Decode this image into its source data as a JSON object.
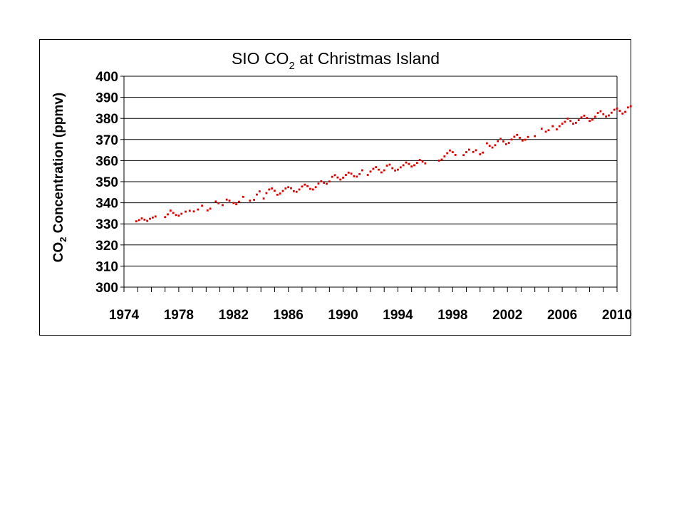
{
  "chart_data": {
    "type": "scatter",
    "title": "SIO CO",
    "title_subscript": "2",
    "title_suffix": " at Christmas Island",
    "ylabel": "CO",
    "ylabel_subscript": "2",
    "ylabel_suffix": " Concentration (ppmv)",
    "xlabel": "",
    "xlim": [
      1974,
      2010
    ],
    "ylim": [
      300,
      400
    ],
    "x_ticks": [
      "1974",
      "1978",
      "1982",
      "1986",
      "1990",
      "1994",
      "1998",
      "2002",
      "2006",
      "2010"
    ],
    "y_ticks": [
      "300",
      "310",
      "320",
      "330",
      "340",
      "350",
      "360",
      "370",
      "380",
      "390",
      "400"
    ],
    "grid": "horizontal",
    "legend": "none",
    "marker_color": "#e00000",
    "series": [
      {
        "points": [
          [
            1974.9,
            331.2
          ],
          [
            1975.1,
            331.8
          ],
          [
            1975.3,
            332.6
          ],
          [
            1975.5,
            332.0
          ],
          [
            1975.7,
            331.4
          ],
          [
            1975.9,
            332.4
          ],
          [
            1976.1,
            333.0
          ],
          [
            1976.3,
            333.5
          ],
          [
            1977.0,
            333.2
          ],
          [
            1977.2,
            334.5
          ],
          [
            1977.4,
            336.3
          ],
          [
            1977.6,
            335.2
          ],
          [
            1977.8,
            334.2
          ],
          [
            1978.0,
            333.9
          ],
          [
            1978.2,
            334.8
          ],
          [
            1978.5,
            335.8
          ],
          [
            1978.8,
            336.2
          ],
          [
            1979.1,
            335.9
          ],
          [
            1979.4,
            336.8
          ],
          [
            1979.7,
            338.6
          ],
          [
            1980.1,
            336.4
          ],
          [
            1980.3,
            337.2
          ],
          [
            1980.7,
            340.6
          ],
          [
            1980.9,
            339.8
          ],
          [
            1981.2,
            338.9
          ],
          [
            1981.5,
            341.5
          ],
          [
            1981.7,
            341.0
          ],
          [
            1982.0,
            339.9
          ],
          [
            1982.2,
            339.3
          ],
          [
            1982.4,
            340.5
          ],
          [
            1982.7,
            342.8
          ],
          [
            1983.2,
            341.0
          ],
          [
            1983.5,
            341.4
          ],
          [
            1983.7,
            343.9
          ],
          [
            1983.9,
            345.4
          ],
          [
            1984.2,
            342.0
          ],
          [
            1984.4,
            344.6
          ],
          [
            1984.6,
            346.3
          ],
          [
            1984.8,
            346.8
          ],
          [
            1985.0,
            345.7
          ],
          [
            1985.2,
            343.8
          ],
          [
            1985.4,
            344.4
          ],
          [
            1985.6,
            345.6
          ],
          [
            1985.8,
            346.8
          ],
          [
            1986.0,
            347.4
          ],
          [
            1986.2,
            346.9
          ],
          [
            1986.4,
            345.5
          ],
          [
            1986.6,
            345.2
          ],
          [
            1986.8,
            346.3
          ],
          [
            1987.0,
            347.7
          ],
          [
            1987.2,
            348.6
          ],
          [
            1987.4,
            347.9
          ],
          [
            1987.6,
            346.6
          ],
          [
            1987.8,
            346.3
          ],
          [
            1988.0,
            347.4
          ],
          [
            1988.2,
            349.1
          ],
          [
            1988.4,
            350.2
          ],
          [
            1988.6,
            349.5
          ],
          [
            1988.8,
            349.0
          ],
          [
            1989.0,
            350.1
          ],
          [
            1989.2,
            352.3
          ],
          [
            1989.4,
            353.1
          ],
          [
            1989.6,
            352.0
          ],
          [
            1989.8,
            351.0
          ],
          [
            1990.0,
            351.9
          ],
          [
            1990.2,
            353.2
          ],
          [
            1990.4,
            354.3
          ],
          [
            1990.6,
            353.8
          ],
          [
            1990.8,
            352.6
          ],
          [
            1991.0,
            352.4
          ],
          [
            1991.2,
            353.6
          ],
          [
            1991.4,
            355.4
          ],
          [
            1991.8,
            353.2
          ],
          [
            1992.0,
            354.8
          ],
          [
            1992.2,
            356.1
          ],
          [
            1992.4,
            356.9
          ],
          [
            1992.6,
            355.7
          ],
          [
            1992.8,
            354.4
          ],
          [
            1993.0,
            355.4
          ],
          [
            1993.2,
            357.6
          ],
          [
            1993.4,
            358.1
          ],
          [
            1993.6,
            356.4
          ],
          [
            1993.8,
            355.3
          ],
          [
            1994.0,
            355.7
          ],
          [
            1994.2,
            356.8
          ],
          [
            1994.4,
            357.8
          ],
          [
            1994.6,
            359.1
          ],
          [
            1994.8,
            358.4
          ],
          [
            1995.0,
            357.2
          ],
          [
            1995.2,
            357.8
          ],
          [
            1995.4,
            358.9
          ],
          [
            1995.6,
            360.3
          ],
          [
            1995.8,
            359.5
          ],
          [
            1996.0,
            358.7
          ],
          [
            1997.0,
            360.0
          ],
          [
            1997.2,
            360.5
          ],
          [
            1997.4,
            362.0
          ],
          [
            1997.6,
            363.5
          ],
          [
            1997.8,
            364.8
          ],
          [
            1998.0,
            364.0
          ],
          [
            1998.2,
            362.7
          ],
          [
            1998.8,
            362.6
          ],
          [
            1999.0,
            364.0
          ],
          [
            1999.2,
            365.2
          ],
          [
            1999.5,
            364.1
          ],
          [
            1999.7,
            364.9
          ],
          [
            2000.0,
            363.0
          ],
          [
            2000.2,
            363.8
          ],
          [
            2000.5,
            368.2
          ],
          [
            2000.7,
            367.0
          ],
          [
            2000.9,
            366.2
          ],
          [
            2001.1,
            367.3
          ],
          [
            2001.3,
            369.2
          ],
          [
            2001.5,
            370.3
          ],
          [
            2001.7,
            369.1
          ],
          [
            2001.9,
            367.8
          ],
          [
            2002.1,
            368.4
          ],
          [
            2002.3,
            370.0
          ],
          [
            2002.5,
            371.3
          ],
          [
            2002.7,
            372.2
          ],
          [
            2002.9,
            370.8
          ],
          [
            2003.1,
            369.5
          ],
          [
            2003.3,
            369.9
          ],
          [
            2003.5,
            371.2
          ],
          [
            2004.0,
            371.6
          ],
          [
            2004.5,
            375.1
          ],
          [
            2004.8,
            373.7
          ],
          [
            2005.0,
            374.4
          ],
          [
            2005.3,
            376.3
          ],
          [
            2005.6,
            374.8
          ],
          [
            2005.8,
            376.3
          ],
          [
            2006.0,
            377.5
          ],
          [
            2006.2,
            378.4
          ],
          [
            2006.4,
            379.9
          ],
          [
            2006.6,
            378.8
          ],
          [
            2006.8,
            377.5
          ],
          [
            2007.0,
            377.9
          ],
          [
            2007.2,
            379.2
          ],
          [
            2007.4,
            380.5
          ],
          [
            2007.6,
            381.3
          ],
          [
            2007.8,
            380.2
          ],
          [
            2008.0,
            378.8
          ],
          [
            2008.2,
            379.4
          ],
          [
            2008.4,
            380.8
          ],
          [
            2008.6,
            382.6
          ],
          [
            2008.8,
            383.4
          ],
          [
            2009.0,
            382.0
          ],
          [
            2009.2,
            380.9
          ],
          [
            2009.4,
            381.4
          ],
          [
            2009.6,
            382.7
          ],
          [
            2009.8,
            384.1
          ],
          [
            2010.0,
            384.7
          ],
          [
            2010.2,
            383.6
          ],
          [
            2010.4,
            382.3
          ],
          [
            2010.6,
            383.1
          ],
          [
            2010.8,
            385.2
          ],
          [
            2011.0,
            385.8
          ]
        ]
      }
    ]
  }
}
